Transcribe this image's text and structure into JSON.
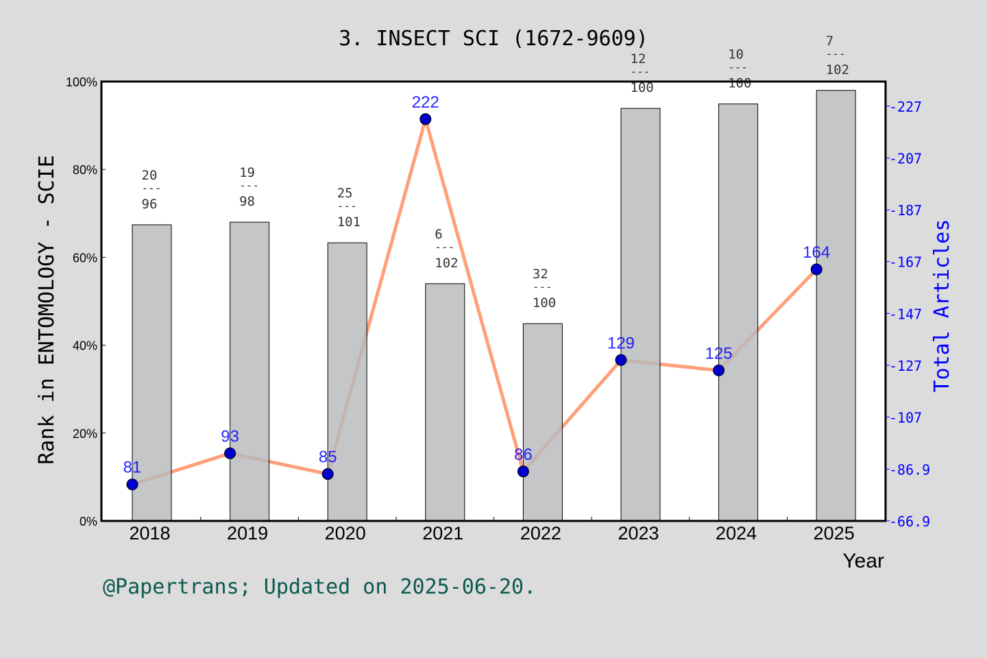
{
  "chart_data": {
    "type": "bar+line",
    "title": "3. INSECT SCI (1672-9609)",
    "xlabel": "Year",
    "ylabel": "Rank in ENTOMOLOGY - SCIE",
    "y2label": "Total Articles",
    "categories": [
      "2018",
      "2019",
      "2020",
      "2021",
      "2022",
      "2023",
      "2024",
      "2025"
    ],
    "ylim": [
      0,
      100
    ],
    "yticks": [
      "0%",
      "20%",
      "40%",
      "60%",
      "80%",
      "100%"
    ],
    "y2lim": [
      66.9,
      236.5
    ],
    "y2ticks": [
      "66.9",
      "86.9",
      "107",
      "127",
      "147",
      "167",
      "187",
      "207",
      "227"
    ],
    "series": [
      {
        "type": "bar",
        "values": [
          67.4,
          68.0,
          63.3,
          54.0,
          44.9,
          93.9,
          94.9,
          98.0
        ],
        "labels": [
          [
            "20",
            "96"
          ],
          [
            "19",
            "98"
          ],
          [
            "25",
            "101"
          ],
          [
            "6",
            "102"
          ],
          [
            "32",
            "100"
          ],
          [
            "12",
            "100"
          ],
          [
            "10",
            "100"
          ],
          [
            "7",
            "102"
          ]
        ]
      },
      {
        "type": "line",
        "axis": "right",
        "values": [
          81,
          93,
          85,
          222,
          86,
          129,
          125,
          164
        ]
      }
    ],
    "colors": {
      "bar": "#b8b9bb",
      "line": "#ffa07a",
      "marker": "#0000cc",
      "right_axis": "#0000ff",
      "footer": "#0b5a50",
      "background": "#dcdcdc"
    }
  },
  "footer": "@Papertrans; Updated on 2025-06-20."
}
